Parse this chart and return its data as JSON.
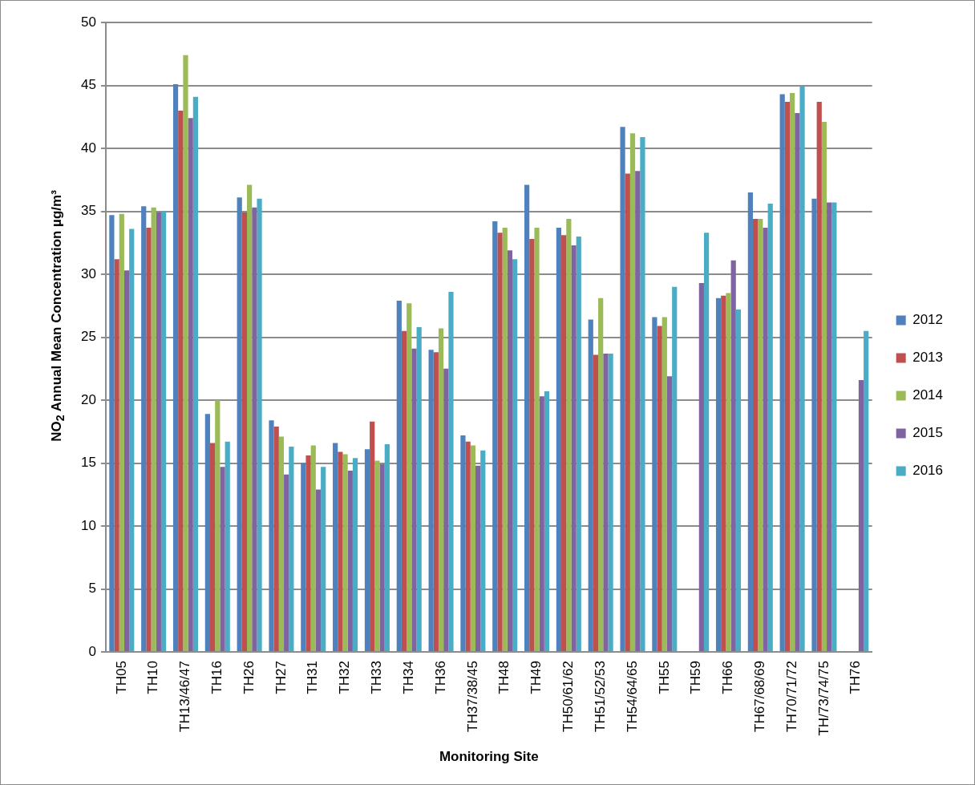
{
  "chart_data": {
    "type": "bar",
    "xlabel": "Monitoring Site",
    "ylabel": "NO$_{2}$ Annual Mean Concentration µg/m³",
    "categories": [
      "TH05",
      "TH10",
      "TH13/46/47",
      "TH16",
      "TH26",
      "TH27",
      "TH31",
      "TH32",
      "TH33",
      "TH34",
      "TH36",
      "TH37/38/45",
      "TH48",
      "TH49",
      "TH50/61/62",
      "TH51/52/53",
      "TH54/64/65",
      "TH55",
      "TH59",
      "TH66",
      "TH67/68/69",
      "TH70/71/72",
      "TH/73/74/75",
      "TH76"
    ],
    "series": [
      {
        "name": "2012",
        "color": "#4f81bd",
        "values": [
          34.7,
          35.4,
          45.1,
          18.9,
          36.1,
          18.4,
          15.0,
          16.6,
          16.1,
          27.9,
          24.0,
          17.2,
          34.2,
          37.1,
          33.7,
          26.4,
          41.7,
          26.6,
          null,
          28.1,
          36.5,
          44.3,
          36.0,
          null
        ]
      },
      {
        "name": "2013",
        "color": "#c0504d",
        "values": [
          31.2,
          33.7,
          43.0,
          16.6,
          34.9,
          17.9,
          15.6,
          15.9,
          18.3,
          25.5,
          23.8,
          16.7,
          33.3,
          32.8,
          33.1,
          23.6,
          38.0,
          25.9,
          null,
          28.3,
          34.4,
          43.7,
          43.7,
          null
        ]
      },
      {
        "name": "2014",
        "color": "#9bbb59",
        "values": [
          34.8,
          35.3,
          47.4,
          20.0,
          37.1,
          17.1,
          16.4,
          15.7,
          15.2,
          27.7,
          25.7,
          16.4,
          33.7,
          33.7,
          34.4,
          28.1,
          41.2,
          26.6,
          null,
          28.5,
          34.4,
          44.4,
          42.1,
          null
        ]
      },
      {
        "name": "2015",
        "color": "#8064a2",
        "values": [
          30.3,
          34.9,
          42.4,
          14.7,
          35.3,
          14.1,
          12.9,
          14.4,
          14.9,
          24.1,
          22.5,
          14.8,
          31.9,
          20.3,
          32.3,
          23.7,
          38.2,
          21.9,
          29.3,
          31.1,
          33.7,
          42.8,
          35.7,
          21.6
        ]
      },
      {
        "name": "2016",
        "color": "#4bacc6",
        "values": [
          33.6,
          35.0,
          44.1,
          16.7,
          36.0,
          16.3,
          14.7,
          15.4,
          16.5,
          25.8,
          28.6,
          16.0,
          31.2,
          20.7,
          33.0,
          23.7,
          40.9,
          29.0,
          33.3,
          27.2,
          35.6,
          44.9,
          35.7,
          25.5
        ]
      }
    ],
    "ylim": [
      0,
      50
    ],
    "yticks": [
      0,
      5,
      10,
      15,
      20,
      25,
      30,
      35,
      40,
      45,
      50
    ],
    "grid": "y",
    "legend": "right"
  }
}
